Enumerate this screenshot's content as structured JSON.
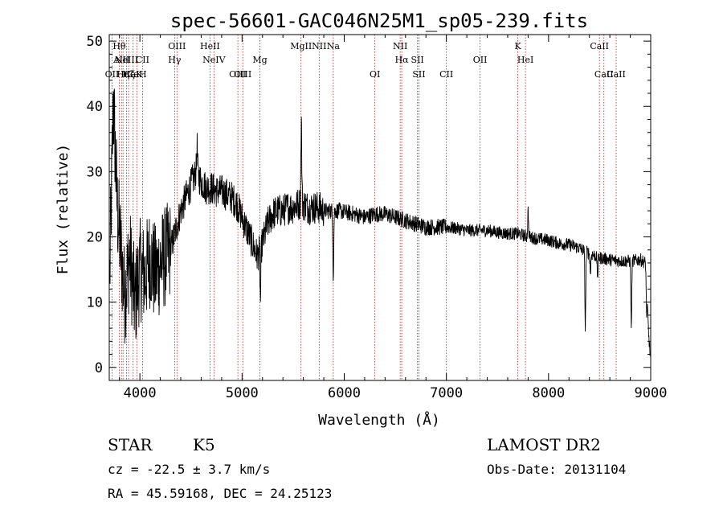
{
  "chart_data": {
    "type": "line",
    "title": "spec-56601-GAC046N25M1_sp05-239.fits",
    "xlabel": "Wavelength (Å)",
    "ylabel": "Flux (relative)",
    "xlim": [
      3700,
      9000
    ],
    "ylim": [
      -2,
      51
    ],
    "xticks": [
      4000,
      5000,
      6000,
      7000,
      8000,
      9000
    ],
    "yticks": [
      0,
      10,
      20,
      30,
      40,
      50
    ],
    "grid": false,
    "line_color": "#000000",
    "marker_color": "#b22222",
    "spectral_lines": [
      {
        "wl": 3727,
        "label": "OII",
        "row": 3
      },
      {
        "wl": 3798,
        "label": "Hθ",
        "row": 1
      },
      {
        "wl": 3820,
        "label": "AlII",
        "row": 2
      },
      {
        "wl": 3835,
        "label": "Hη",
        "row": 3
      },
      {
        "wl": 3869,
        "label": "NeIII",
        "row": 2
      },
      {
        "wl": 3889,
        "label": "Hζ",
        "row": 3
      },
      {
        "wl": 3934,
        "label": "CaK",
        "row": 3
      },
      {
        "wl": 3970,
        "label": "CaH",
        "row": 3
      },
      {
        "wl": 4026,
        "label": "CII",
        "row": 2
      },
      {
        "wl": 4340,
        "label": "Hγ",
        "row": 2
      },
      {
        "wl": 4363,
        "label": "OIII",
        "row": 1
      },
      {
        "wl": 4686,
        "label": "HeII",
        "row": 1
      },
      {
        "wl": 4725,
        "label": "NeIV",
        "row": 2
      },
      {
        "wl": 4959,
        "label": "OIII",
        "row": 3
      },
      {
        "wl": 5007,
        "label": "OIII",
        "row": 3
      },
      {
        "wl": 5175,
        "label": "Mg",
        "row": 2
      },
      {
        "wl": 5577,
        "label": "MgII",
        "row": 1
      },
      {
        "wl": 5755,
        "label": "NII",
        "row": 1
      },
      {
        "wl": 5893,
        "label": "Na",
        "row": 1
      },
      {
        "wl": 6300,
        "label": "OI",
        "row": 3
      },
      {
        "wl": 6548,
        "label": "NII",
        "row": 1
      },
      {
        "wl": 6563,
        "label": "Hα",
        "row": 2
      },
      {
        "wl": 6717,
        "label": "SII",
        "row": 2
      },
      {
        "wl": 6731,
        "label": "SII",
        "row": 3
      },
      {
        "wl": 7000,
        "label": "CII",
        "row": 3
      },
      {
        "wl": 7330,
        "label": "OII",
        "row": 2
      },
      {
        "wl": 7774,
        "label": "HeI",
        "row": 2
      },
      {
        "wl": 7699,
        "label": "K",
        "row": 1
      },
      {
        "wl": 8498,
        "label": "CaII",
        "row": 1
      },
      {
        "wl": 8542,
        "label": "CaII",
        "row": 3
      },
      {
        "wl": 8662,
        "label": "CaII",
        "row": 3
      }
    ],
    "spectrum_nodes": [
      [
        3705,
        14
      ],
      [
        3740,
        41
      ],
      [
        3780,
        24
      ],
      [
        3850,
        11
      ],
      [
        3900,
        17
      ],
      [
        3950,
        10
      ],
      [
        4000,
        15
      ],
      [
        4050,
        14
      ],
      [
        4100,
        17
      ],
      [
        4150,
        14
      ],
      [
        4200,
        16
      ],
      [
        4250,
        17
      ],
      [
        4300,
        18
      ],
      [
        4350,
        21
      ],
      [
        4400,
        24
      ],
      [
        4450,
        26
      ],
      [
        4500,
        28
      ],
      [
        4550,
        30
      ],
      [
        4600,
        28.5
      ],
      [
        4650,
        27.5
      ],
      [
        4700,
        27.5
      ],
      [
        4750,
        27
      ],
      [
        4800,
        27
      ],
      [
        4850,
        26.5
      ],
      [
        4900,
        26
      ],
      [
        4950,
        25
      ],
      [
        5000,
        23
      ],
      [
        5050,
        21
      ],
      [
        5100,
        19
      ],
      [
        5150,
        17
      ],
      [
        5200,
        19
      ],
      [
        5250,
        22
      ],
      [
        5300,
        23.5
      ],
      [
        5350,
        24
      ],
      [
        5400,
        24
      ],
      [
        5450,
        24.5
      ],
      [
        5500,
        24.5
      ],
      [
        5550,
        25
      ],
      [
        5600,
        25
      ],
      [
        5650,
        24.5
      ],
      [
        5700,
        24.5
      ],
      [
        5750,
        24.5
      ],
      [
        5800,
        24
      ],
      [
        5850,
        24
      ],
      [
        5900,
        24
      ],
      [
        5950,
        24
      ],
      [
        6000,
        23.8
      ],
      [
        6100,
        23.5
      ],
      [
        6200,
        23
      ],
      [
        6300,
        23.5
      ],
      [
        6400,
        23.5
      ],
      [
        6500,
        23
      ],
      [
        6600,
        22.5
      ],
      [
        6700,
        22
      ],
      [
        6800,
        21.5
      ],
      [
        6900,
        21.5
      ],
      [
        7000,
        21.5
      ],
      [
        7100,
        21.3
      ],
      [
        7200,
        21
      ],
      [
        7300,
        21
      ],
      [
        7400,
        21
      ],
      [
        7500,
        20.7
      ],
      [
        7600,
        20.5
      ],
      [
        7700,
        20.5
      ],
      [
        7800,
        20
      ],
      [
        7900,
        19.7
      ],
      [
        8000,
        19.5
      ],
      [
        8100,
        19
      ],
      [
        8200,
        18.8
      ],
      [
        8300,
        18.3
      ],
      [
        8400,
        17.5
      ],
      [
        8500,
        16.8
      ],
      [
        8600,
        16.5
      ],
      [
        8700,
        16.3
      ],
      [
        8800,
        16.3
      ],
      [
        8900,
        16.5
      ],
      [
        8950,
        16
      ],
      [
        8980,
        5
      ],
      [
        9000,
        1
      ]
    ],
    "spectrum_features": [
      [
        5180,
        -8
      ],
      [
        5893,
        -10
      ],
      [
        8360,
        -12
      ],
      [
        8410,
        -3
      ],
      [
        8480,
        -3
      ],
      [
        8810,
        -10
      ],
      [
        8960,
        -4
      ],
      [
        5580,
        13
      ],
      [
        4560,
        4
      ],
      [
        7800,
        4
      ]
    ]
  },
  "info": {
    "class": "STAR",
    "subclass": "K5",
    "survey": "LAMOST DR2",
    "cz": "cz = -22.5 ± 3.7 km/s",
    "obs_date": "Obs-Date: 20131104",
    "coords": "RA =  45.59168, DEC =  24.25123"
  }
}
